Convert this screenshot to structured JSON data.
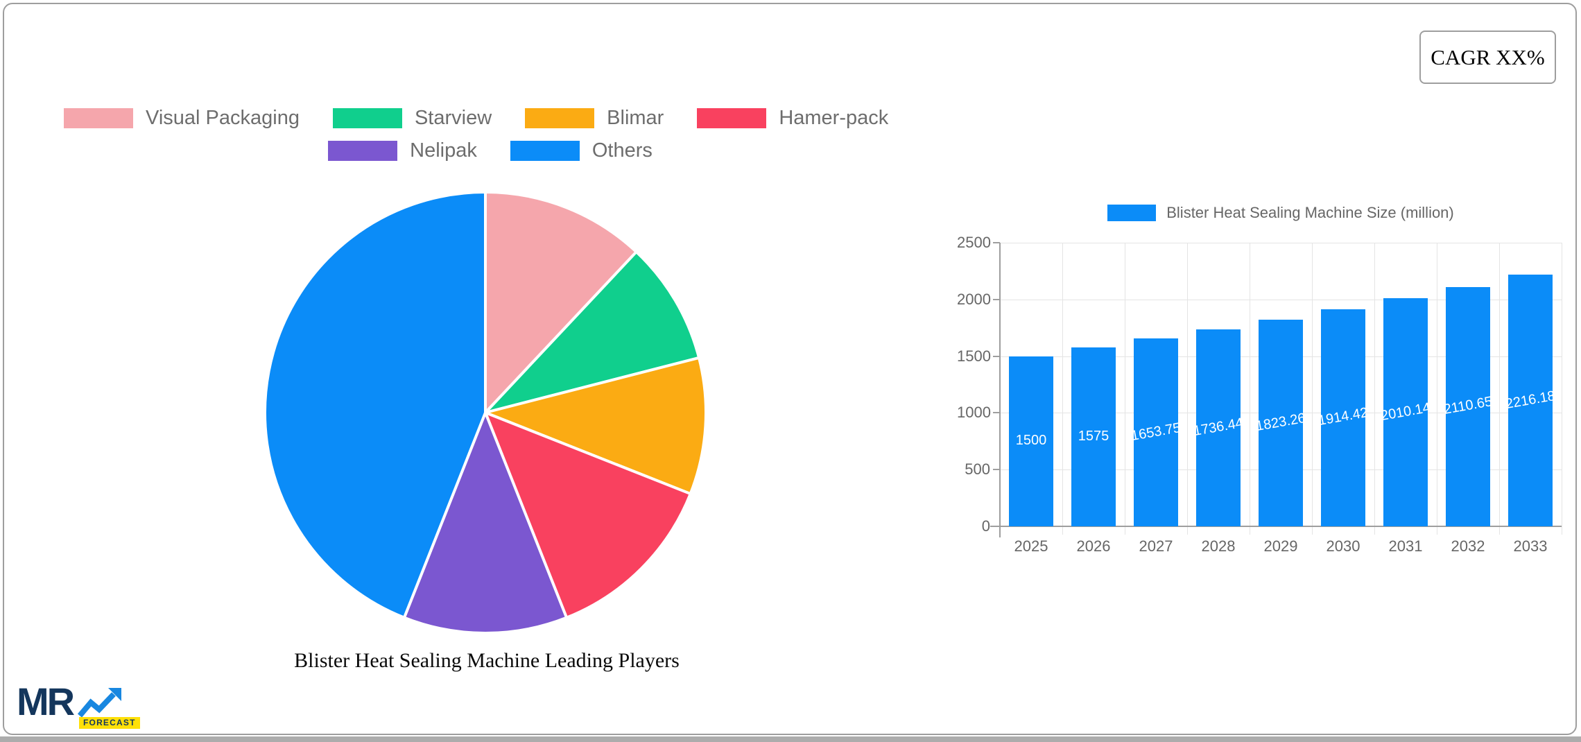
{
  "badge": {
    "cagr": "CAGR XX%"
  },
  "logo": {
    "mr": "MR",
    "forecast": "FORECAST"
  },
  "chart_data": [
    {
      "type": "pie",
      "title": "Blister Heat Sealing Machine Leading Players",
      "legend_position": "top",
      "labels": [
        "Visual Packaging",
        "Starview",
        "Blimar",
        "Hamer-pack",
        "Nelipak",
        "Others"
      ],
      "values": [
        12,
        9,
        10,
        13,
        12,
        44
      ],
      "values_note": "percent share estimated from arc angles",
      "colors": [
        "#F5A6AC",
        "#10CF8D",
        "#FBAB13",
        "#F9415F",
        "#7B57D0",
        "#0B8CF8"
      ],
      "slice_border_color": "#FFFFFF"
    },
    {
      "type": "bar",
      "legend": "Blister Heat Sealing Machine Size (million)",
      "categories": [
        "2025",
        "2026",
        "2027",
        "2028",
        "2029",
        "2030",
        "2031",
        "2032",
        "2033"
      ],
      "values": [
        1500,
        1575,
        1653.75,
        1736.44,
        1823.26,
        1914.42,
        2010.14,
        2110.65,
        2216.18
      ],
      "bar_labels": [
        "1500",
        "1575",
        "1653.75",
        "1736.44",
        "1823.26",
        "1914.42",
        "2010.14",
        "2110.65",
        "2216.18"
      ],
      "yticks": [
        0,
        500,
        1000,
        1500,
        2000,
        2500
      ],
      "ylim": [
        0,
        2500
      ],
      "bar_color": "#0B8CF8",
      "grid": true,
      "legend_position": "top"
    }
  ]
}
